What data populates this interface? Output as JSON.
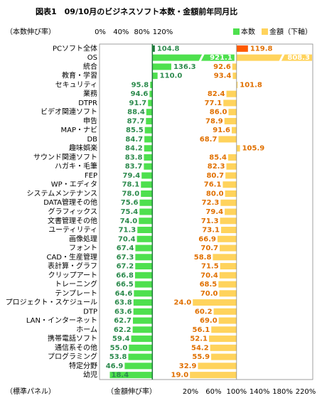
{
  "chart_data": {
    "type": "paired-bar",
    "title": "図表1　09/10月のビジネスソフト本数・金額前年同月比",
    "x_label": "（本数伸び率）",
    "x2_label": "（金額伸び率）",
    "note": "（標準パネル）",
    "categories": [
      "PCソフト全体",
      "OS",
      "統合",
      "教育・学習",
      "セキュリティ",
      "業務",
      "DTPR",
      "ビデオ関連ソフト",
      "申告",
      "MAP・ナビ",
      "DB",
      "趣味娯楽",
      "サウンド関連ソフト",
      "ハガキ・毛筆",
      "FEP",
      "WP・エディタ",
      "システムメンテナンス",
      "DATA管理その他",
      "グラフィックス",
      "文書管理その他",
      "ユーティリティ",
      "画像処理",
      "フォント",
      "CAD・生産管理",
      "表計算・グラフ",
      "クリップアート",
      "トレーニング",
      "テンプレート",
      "プロジェクト・スケジュール",
      "DTP",
      "LAN・インターネット",
      "ホーム",
      "携帯電話ソフト",
      "通信系その他",
      "プログラミング",
      "特定分野",
      "幼児"
    ],
    "series": [
      {
        "name": "本数",
        "color": "#4ee04e",
        "highlight_color": "#1f7a3c",
        "label_color": "#2e8b4e",
        "values": [
          104.8,
          921.1,
          136.3,
          110.0,
          95.8,
          94.6,
          91.7,
          88.4,
          87.7,
          85.5,
          84.7,
          84.2,
          83.8,
          83.7,
          79.4,
          78.1,
          78.0,
          75.6,
          75.4,
          74.0,
          71.3,
          70.4,
          67.4,
          67.3,
          67.2,
          66.8,
          66.5,
          64.6,
          63.8,
          63.6,
          62.7,
          62.2,
          59.4,
          55.0,
          53.8,
          46.9,
          18.4
        ],
        "value_labels": [
          "104.8",
          "921.1",
          "136.3",
          "110.0",
          "95.8",
          "94.6",
          "91.7",
          "88.4",
          "87.7",
          "85.5",
          "84.7",
          "84.2",
          "83.8",
          "83.7",
          "79.4",
          "78.1",
          "78.0",
          "75.6",
          "75.4",
          "74.0",
          "71.3",
          "70.4",
          "67.4",
          "67.3",
          "67.2",
          "66.8",
          "66.5",
          "64.6",
          "63.8",
          "63.6",
          "62.7",
          "62.2",
          "59.4",
          "55.0",
          "53.8",
          "46.9",
          "18.4"
        ]
      },
      {
        "name": "金額（下軸）",
        "color": "#ffd35c",
        "highlight_color": "#ff5a00",
        "label_color": "#e07000",
        "axis": "x2",
        "values": [
          119.8,
          808.3,
          92.6,
          93.4,
          101.8,
          82.4,
          77.1,
          86.0,
          78.9,
          91.6,
          68.7,
          105.9,
          85.4,
          82.3,
          80.7,
          76.1,
          80.0,
          72.3,
          79.4,
          71.3,
          73.1,
          66.9,
          70.7,
          58.8,
          71.5,
          70.4,
          68.5,
          70.0,
          24.0,
          60.2,
          69.0,
          56.1,
          52.1,
          54.2,
          55.9,
          32.9,
          19.0
        ],
        "value_labels": [
          "119.8",
          "808.3",
          "92.6",
          "93.4",
          "101.8",
          "82.4",
          "77.1",
          "86.0",
          "78.9",
          "91.6",
          "68.7",
          "105.9",
          "85.4",
          "82.3",
          "80.7",
          "76.1",
          "80.0",
          "72.3",
          "79.4",
          "71.3",
          "73.1",
          "66.9",
          "70.7",
          "58.8",
          "71.5",
          "70.4",
          "68.5",
          "70.0",
          "24.0",
          "60.2",
          "69.0",
          "56.1",
          "52.1",
          "54.2",
          "55.9",
          "32.9",
          "19.0"
        ]
      }
    ],
    "base": 100,
    "xlim": [
      0,
      120
    ],
    "xticks": [
      {
        "value": 0,
        "label": "0%"
      },
      {
        "value": 40,
        "label": "40%"
      },
      {
        "value": 80,
        "label": "80%"
      },
      {
        "value": 120,
        "label": "120%"
      }
    ],
    "x2lim": [
      20,
      220
    ],
    "x2ticks": [
      {
        "value": 20,
        "label": "20%"
      },
      {
        "value": 60,
        "label": "60%"
      },
      {
        "value": 100,
        "label": "100%"
      },
      {
        "value": 140,
        "label": "140%"
      },
      {
        "value": 180,
        "label": "180%"
      },
      {
        "value": 220,
        "label": "220%"
      }
    ]
  }
}
